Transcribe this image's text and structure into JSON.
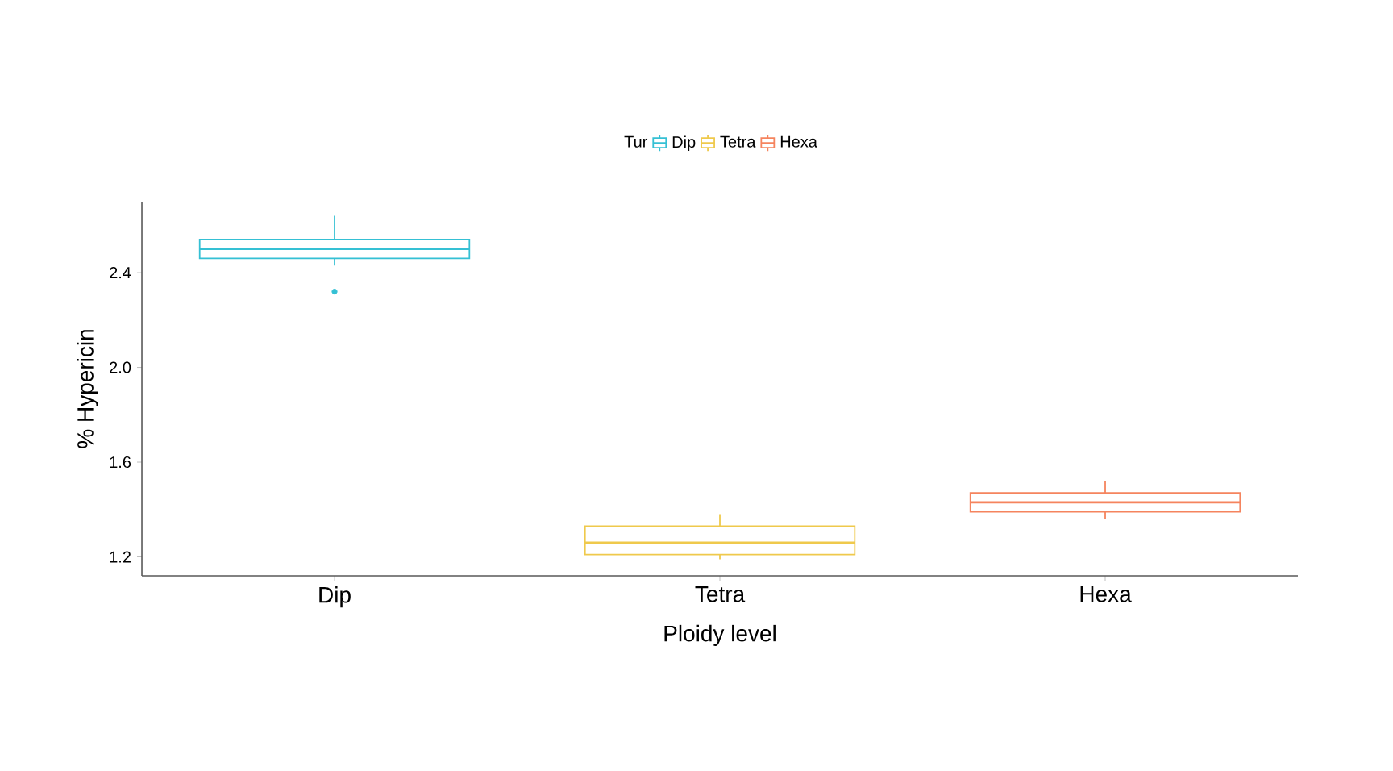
{
  "chart_data": {
    "type": "box",
    "xlabel": "Ploidy level",
    "ylabel": "% Hypericin",
    "legend_title": "Tur",
    "legend": "top",
    "categories": [
      "Dip",
      "Tetra",
      "Hexa"
    ],
    "ylim": [
      1.12,
      2.7
    ],
    "yticks": [
      1.2,
      1.6,
      {
        "value": 2,
        "label": "2.0"
      },
      2.4
    ],
    "series": [
      {
        "name": "Dip",
        "color": "#35c0d4",
        "boxes": [
          {
            "low": 2.43,
            "q1": 2.46,
            "median": 2.5,
            "q3": 2.54,
            "high": 2.64,
            "outliers": [
              2.32
            ]
          },
          null,
          null
        ]
      },
      {
        "name": "Tetra",
        "color": "#efc94c",
        "boxes": [
          null,
          {
            "low": 1.19,
            "q1": 1.21,
            "median": 1.26,
            "q3": 1.33,
            "high": 1.38
          },
          null
        ]
      },
      {
        "name": "Hexa",
        "color": "#f5845e",
        "boxes": [
          null,
          null,
          {
            "low": 1.36,
            "q1": 1.39,
            "median": 1.43,
            "q3": 1.47,
            "high": 1.52
          }
        ]
      }
    ]
  }
}
